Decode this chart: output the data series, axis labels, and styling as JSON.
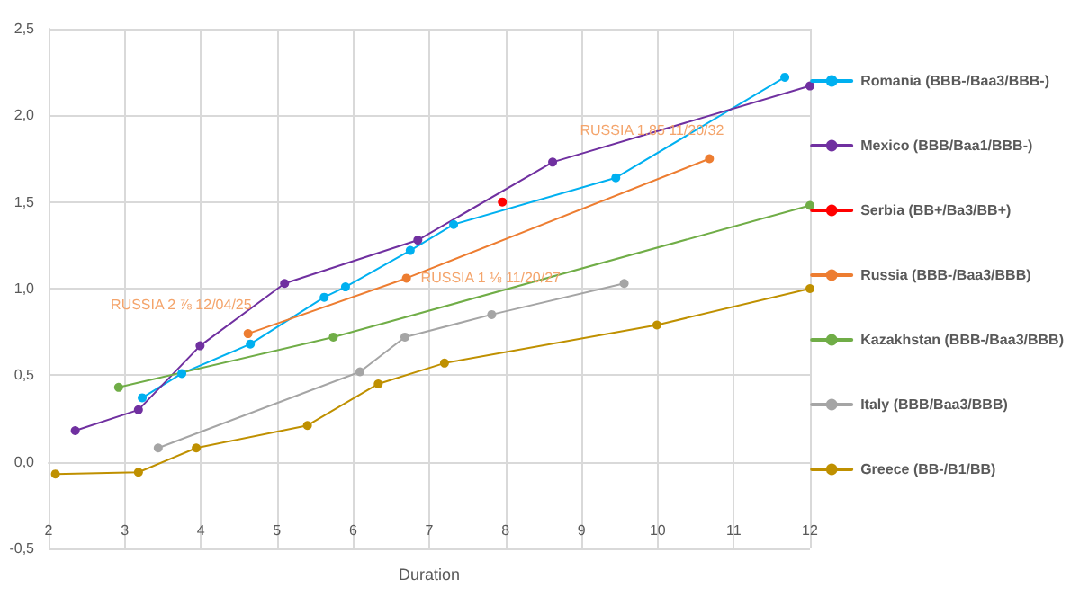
{
  "chart_data": {
    "type": "line",
    "xlabel": "Duration",
    "xlim": [
      2,
      12
    ],
    "xticks": [
      2,
      3,
      4,
      5,
      6,
      7,
      8,
      9,
      10,
      11,
      12
    ],
    "ylim": [
      -0.5,
      2.5
    ],
    "yticks": [
      {
        "value": -0.5,
        "label": "-0,5"
      },
      {
        "value": 0,
        "label": "0,0"
      },
      {
        "value": 0.5,
        "label": "0,5"
      },
      {
        "value": 1,
        "label": "1,0"
      },
      {
        "value": 1.5,
        "label": "1,5"
      },
      {
        "value": 2,
        "label": "2,0"
      },
      {
        "value": 2.5,
        "label": "2,5"
      }
    ],
    "grid": true,
    "legend": "right",
    "marker": "circle",
    "series": [
      {
        "name": "Romania (BBB-/Baa3/BBB-)",
        "color": "#00b0f0",
        "x": [
          3.23,
          3.75,
          4.65,
          5.62,
          5.9,
          6.75,
          7.32,
          9.45,
          11.67
        ],
        "values": [
          0.37,
          0.51,
          0.68,
          0.95,
          1.01,
          1.22,
          1.37,
          1.64,
          2.22
        ]
      },
      {
        "name": "Mexico (BBB/Baa1/BBB-)",
        "color": "#7030a0",
        "x": [
          2.35,
          3.18,
          3.99,
          5.1,
          6.85,
          8.62,
          12
        ],
        "values": [
          0.18,
          0.3,
          0.67,
          1.03,
          1.28,
          1.73,
          2.17
        ]
      },
      {
        "name": "Serbia (BB+/Ba3/BB+)",
        "color": "#ff0000",
        "x": [
          7.96
        ],
        "values": [
          1.5
        ]
      },
      {
        "name": "Russia (BBB-/Baa3/BBB)",
        "color": "#ed7d31",
        "x": [
          4.62,
          6.7,
          10.68
        ],
        "values": [
          0.74,
          1.06,
          1.75
        ]
      },
      {
        "name": "Kazakhstan (BBB-/Baa3/BBB)",
        "color": "#70ad47",
        "x": [
          2.92,
          5.74,
          12
        ],
        "values": [
          0.43,
          0.72,
          1.48
        ]
      },
      {
        "name": "Italy (BBB/Baa3/BBB)",
        "color": "#a5a5a5",
        "x": [
          3.44,
          6.09,
          6.68,
          7.82,
          9.56
        ],
        "values": [
          0.08,
          0.52,
          0.72,
          0.85,
          1.03
        ]
      },
      {
        "name": "Greece (BB-/B1/BB)",
        "color": "#bf9000",
        "x": [
          2.09,
          3.18,
          3.94,
          5.4,
          6.33,
          7.2,
          9.99,
          12
        ],
        "values": [
          -0.07,
          -0.06,
          0.08,
          0.21,
          0.45,
          0.57,
          0.79,
          1.0
        ]
      }
    ],
    "annotations": [
      {
        "text": "RUSSIA 2 ⅞ 12/04/25",
        "x": 4.62,
        "y": 0.74
      },
      {
        "text": "RUSSIA 1 ⅛ 11/20/27",
        "x": 6.7,
        "y": 1.06
      },
      {
        "text": "RUSSIA 1.85 11/20/32",
        "x": 10.68,
        "y": 1.75
      }
    ]
  }
}
